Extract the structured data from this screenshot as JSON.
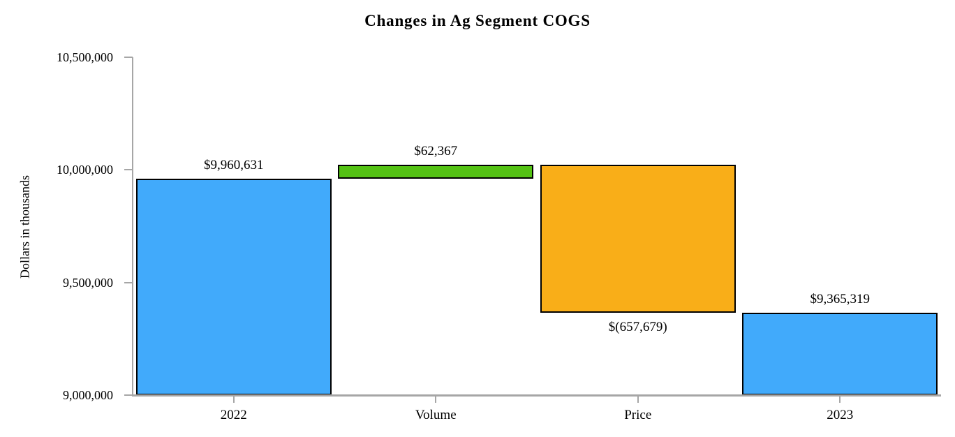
{
  "chart_data": {
    "type": "bar",
    "subtype": "waterfall",
    "title": "Changes in Ag Segment COGS",
    "ylabel": "Dollars in thousands",
    "xlabel": "",
    "ylim": [
      9000000,
      10500000
    ],
    "ytick_step": 500000,
    "grid": "off",
    "legend": "none",
    "yticks": [
      {
        "value": 10500000,
        "label": "10,500,000"
      },
      {
        "value": 10000000,
        "label": "10,000,000"
      },
      {
        "value": 9500000,
        "label": "9,500,000"
      },
      {
        "value": 9000000,
        "label": "9,000,000"
      }
    ],
    "categories": [
      "2022",
      "Volume",
      "Price",
      "2023"
    ],
    "bars": [
      {
        "category": "2022",
        "from": 9000000,
        "to": 9960631,
        "value": 9960631,
        "label": "$9,960,631",
        "label_position": "above",
        "color_key": "total"
      },
      {
        "category": "Volume",
        "from": 9960631,
        "to": 10022998,
        "value": 62367,
        "label": "$62,367",
        "label_position": "above",
        "color_key": "increase"
      },
      {
        "category": "Price",
        "from": 10022998,
        "to": 9365319,
        "value": -657679,
        "label": "$(657,679)",
        "label_position": "below",
        "color_key": "decrease"
      },
      {
        "category": "2023",
        "from": 9000000,
        "to": 9365319,
        "value": 9365319,
        "label": "$9,365,319",
        "label_position": "above",
        "color_key": "total"
      }
    ],
    "colors": {
      "total": "#41aafb",
      "increase": "#54c214",
      "decrease": "#f9ae18",
      "axis": "#a6a6a6",
      "bar_border": "#000000",
      "text": "#000000"
    }
  }
}
